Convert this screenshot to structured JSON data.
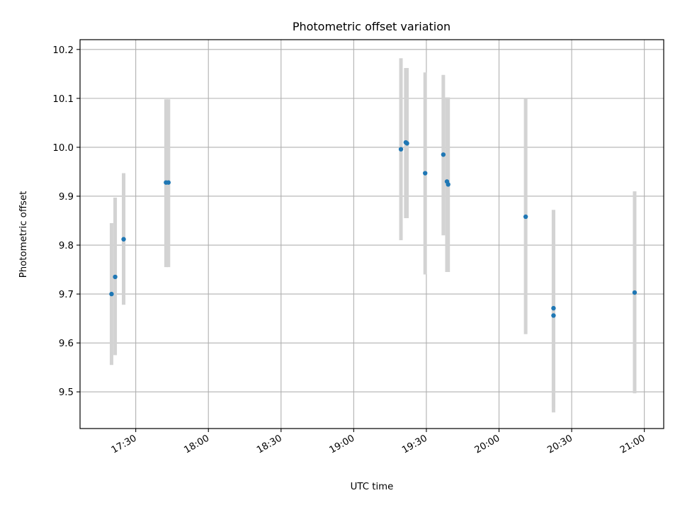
{
  "chart_data": {
    "type": "scatter",
    "title": "Photometric offset variation",
    "xlabel": "UTC time",
    "ylabel": "Photometric offset",
    "x_axis_type": "time",
    "xlim": [
      "17:07",
      "21:08"
    ],
    "ylim": [
      9.425,
      10.22
    ],
    "grid": true,
    "x_ticks": [
      "17:30",
      "18:00",
      "18:30",
      "19:00",
      "19:30",
      "20:00",
      "20:30",
      "21:00"
    ],
    "y_ticks": [
      "9.5",
      "9.6",
      "9.7",
      "9.8",
      "9.9",
      "10.0",
      "10.1",
      "10.2"
    ],
    "marker_color": "#1f77b4",
    "errorbar_color": "#d3d3d3",
    "points": [
      {
        "x": "17:20.0",
        "y": 9.7,
        "y_low": 9.555,
        "y_high": 9.845
      },
      {
        "x": "17:21.5",
        "y": 9.735,
        "y_low": 9.575,
        "y_high": 9.897
      },
      {
        "x": "17:25.0",
        "y": 9.812,
        "y_low": 9.678,
        "y_high": 9.947
      },
      {
        "x": "17:42.5",
        "y": 9.928,
        "y_low": 9.755,
        "y_high": 10.098
      },
      {
        "x": "17:43.5",
        "y": 9.928,
        "y_low": 9.755,
        "y_high": 10.098
      },
      {
        "x": "19:19.5",
        "y": 9.996,
        "y_low": 9.81,
        "y_high": 10.182
      },
      {
        "x": "19:21.5",
        "y": 10.01,
        "y_low": 9.855,
        "y_high": 10.162
      },
      {
        "x": "19:22.0",
        "y": 10.008,
        "y_low": 9.855,
        "y_high": 10.162
      },
      {
        "x": "19:29.5",
        "y": 9.947,
        "y_low": 9.74,
        "y_high": 10.153
      },
      {
        "x": "19:37.0",
        "y": 9.985,
        "y_low": 9.82,
        "y_high": 10.148
      },
      {
        "x": "19:38.5",
        "y": 9.93,
        "y_low": 9.745,
        "y_high": 10.102
      },
      {
        "x": "19:39.0",
        "y": 9.924,
        "y_low": 9.745,
        "y_high": 10.102
      },
      {
        "x": "20:11.0",
        "y": 9.858,
        "y_low": 9.618,
        "y_high": 10.1
      },
      {
        "x": "20:22.5",
        "y": 9.671,
        "y_low": 9.468,
        "y_high": 9.872
      },
      {
        "x": "20:22.5",
        "y": 9.656,
        "y_low": 9.458,
        "y_high": 9.872
      },
      {
        "x": "20:56.0",
        "y": 9.703,
        "y_low": 9.497,
        "y_high": 9.91
      }
    ]
  }
}
